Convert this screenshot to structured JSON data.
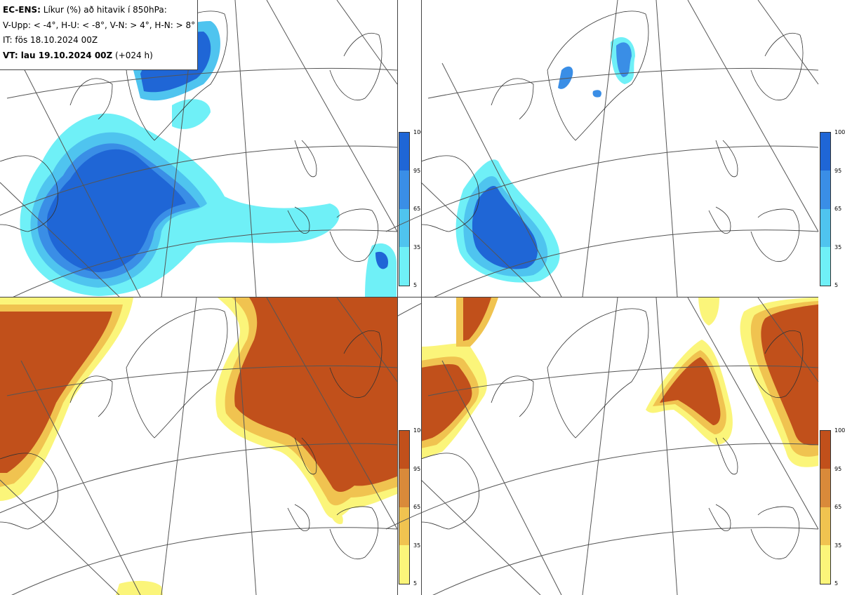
{
  "info": {
    "line1_bold": "EC-ENS:",
    "line1_rest": " Líkur (%) að hitavik í 850hPa:",
    "line2": "V-Upp: < -4°, H-U: < -8°, V-N: > 4°, H-N: > 8°",
    "line3": "IT: fös 18.10.2024 00Z",
    "line4_bold": "VT: lau 19.10.2024 00Z",
    "line4_rest": " (+024 h)"
  },
  "panels": [
    {
      "name": "V-Upp",
      "colormap": "blue"
    },
    {
      "name": "H-U",
      "colormap": "blue"
    },
    {
      "name": "V-N",
      "colormap": "orange"
    },
    {
      "name": "H-N",
      "colormap": "orange"
    }
  ],
  "colorbar": {
    "ticks": [
      "100",
      "95",
      "65",
      "35",
      "5"
    ],
    "blue_colors": [
      "#1f66d6",
      "#3a8ee6",
      "#4fc4ef",
      "#6ff0f7"
    ],
    "orange_colors": [
      "#c1501b",
      "#d98a3a",
      "#f0c350",
      "#fbf57a"
    ]
  }
}
